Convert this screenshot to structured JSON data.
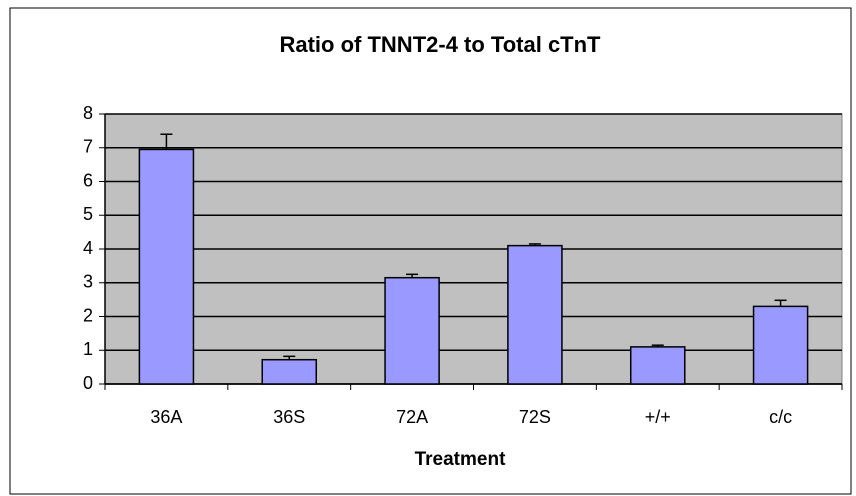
{
  "chart_data": {
    "type": "bar",
    "title": "Ratio of TNNT2-4 to Total cTnT",
    "x_label": "Treatment",
    "categories": [
      "36A",
      "36S",
      "72A",
      "72S",
      "+/+",
      "c/c"
    ],
    "values": [
      6.95,
      0.72,
      3.15,
      4.1,
      1.1,
      2.3
    ],
    "errors": [
      0.45,
      0.1,
      0.1,
      0.05,
      0.05,
      0.18
    ],
    "color": "#9999ff",
    "ylim": [
      0,
      8
    ],
    "yticks": [
      0,
      1,
      2,
      3,
      4,
      5,
      6,
      7,
      8
    ],
    "grid": true
  }
}
